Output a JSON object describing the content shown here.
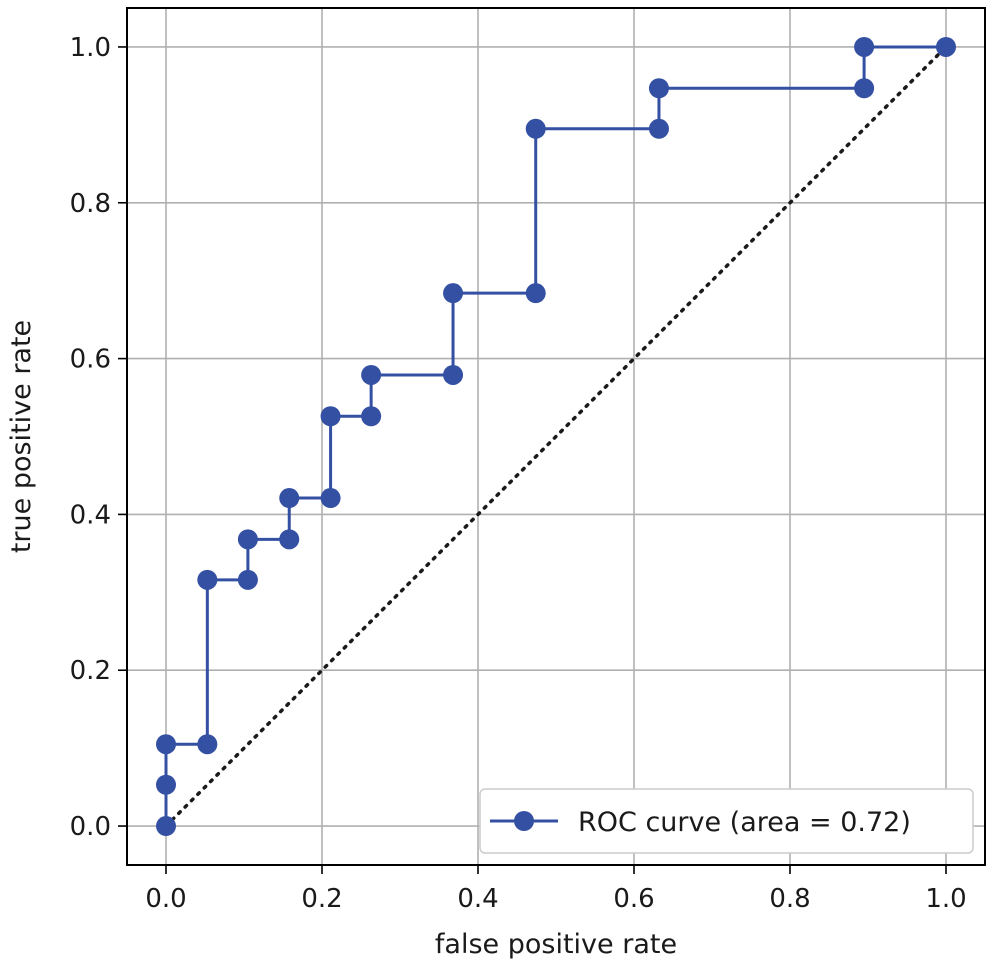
{
  "chart_data": {
    "type": "line",
    "title": "",
    "xlabel": "false positive rate",
    "ylabel": "true positive rate",
    "xlim": [
      -0.05,
      1.05
    ],
    "ylim": [
      -0.05,
      1.05
    ],
    "xticks": [
      "0.0",
      "0.2",
      "0.4",
      "0.6",
      "0.8",
      "1.0"
    ],
    "yticks": [
      "0.0",
      "0.2",
      "0.4",
      "0.6",
      "0.8",
      "1.0"
    ],
    "grid": true,
    "legend_position": "lower-right",
    "series": [
      {
        "name": "ROC curve (area = 0.72)",
        "color": "#3450a3",
        "marker": "circle",
        "x": [
          0.0,
          0.0,
          0.0,
          0.053,
          0.053,
          0.105,
          0.105,
          0.158,
          0.158,
          0.211,
          0.211,
          0.263,
          0.263,
          0.368,
          0.368,
          0.474,
          0.474,
          0.632,
          0.632,
          0.895,
          0.895,
          1.0
        ],
        "y": [
          0.0,
          0.053,
          0.105,
          0.105,
          0.316,
          0.316,
          0.368,
          0.368,
          0.421,
          0.421,
          0.526,
          0.526,
          0.579,
          0.579,
          0.684,
          0.684,
          0.895,
          0.895,
          0.947,
          0.947,
          1.0,
          1.0
        ]
      }
    ],
    "reference_line": {
      "style": "dotted",
      "color": "#1a1a1a",
      "x": [
        0.0,
        1.0
      ],
      "y": [
        0.0,
        1.0
      ]
    }
  }
}
